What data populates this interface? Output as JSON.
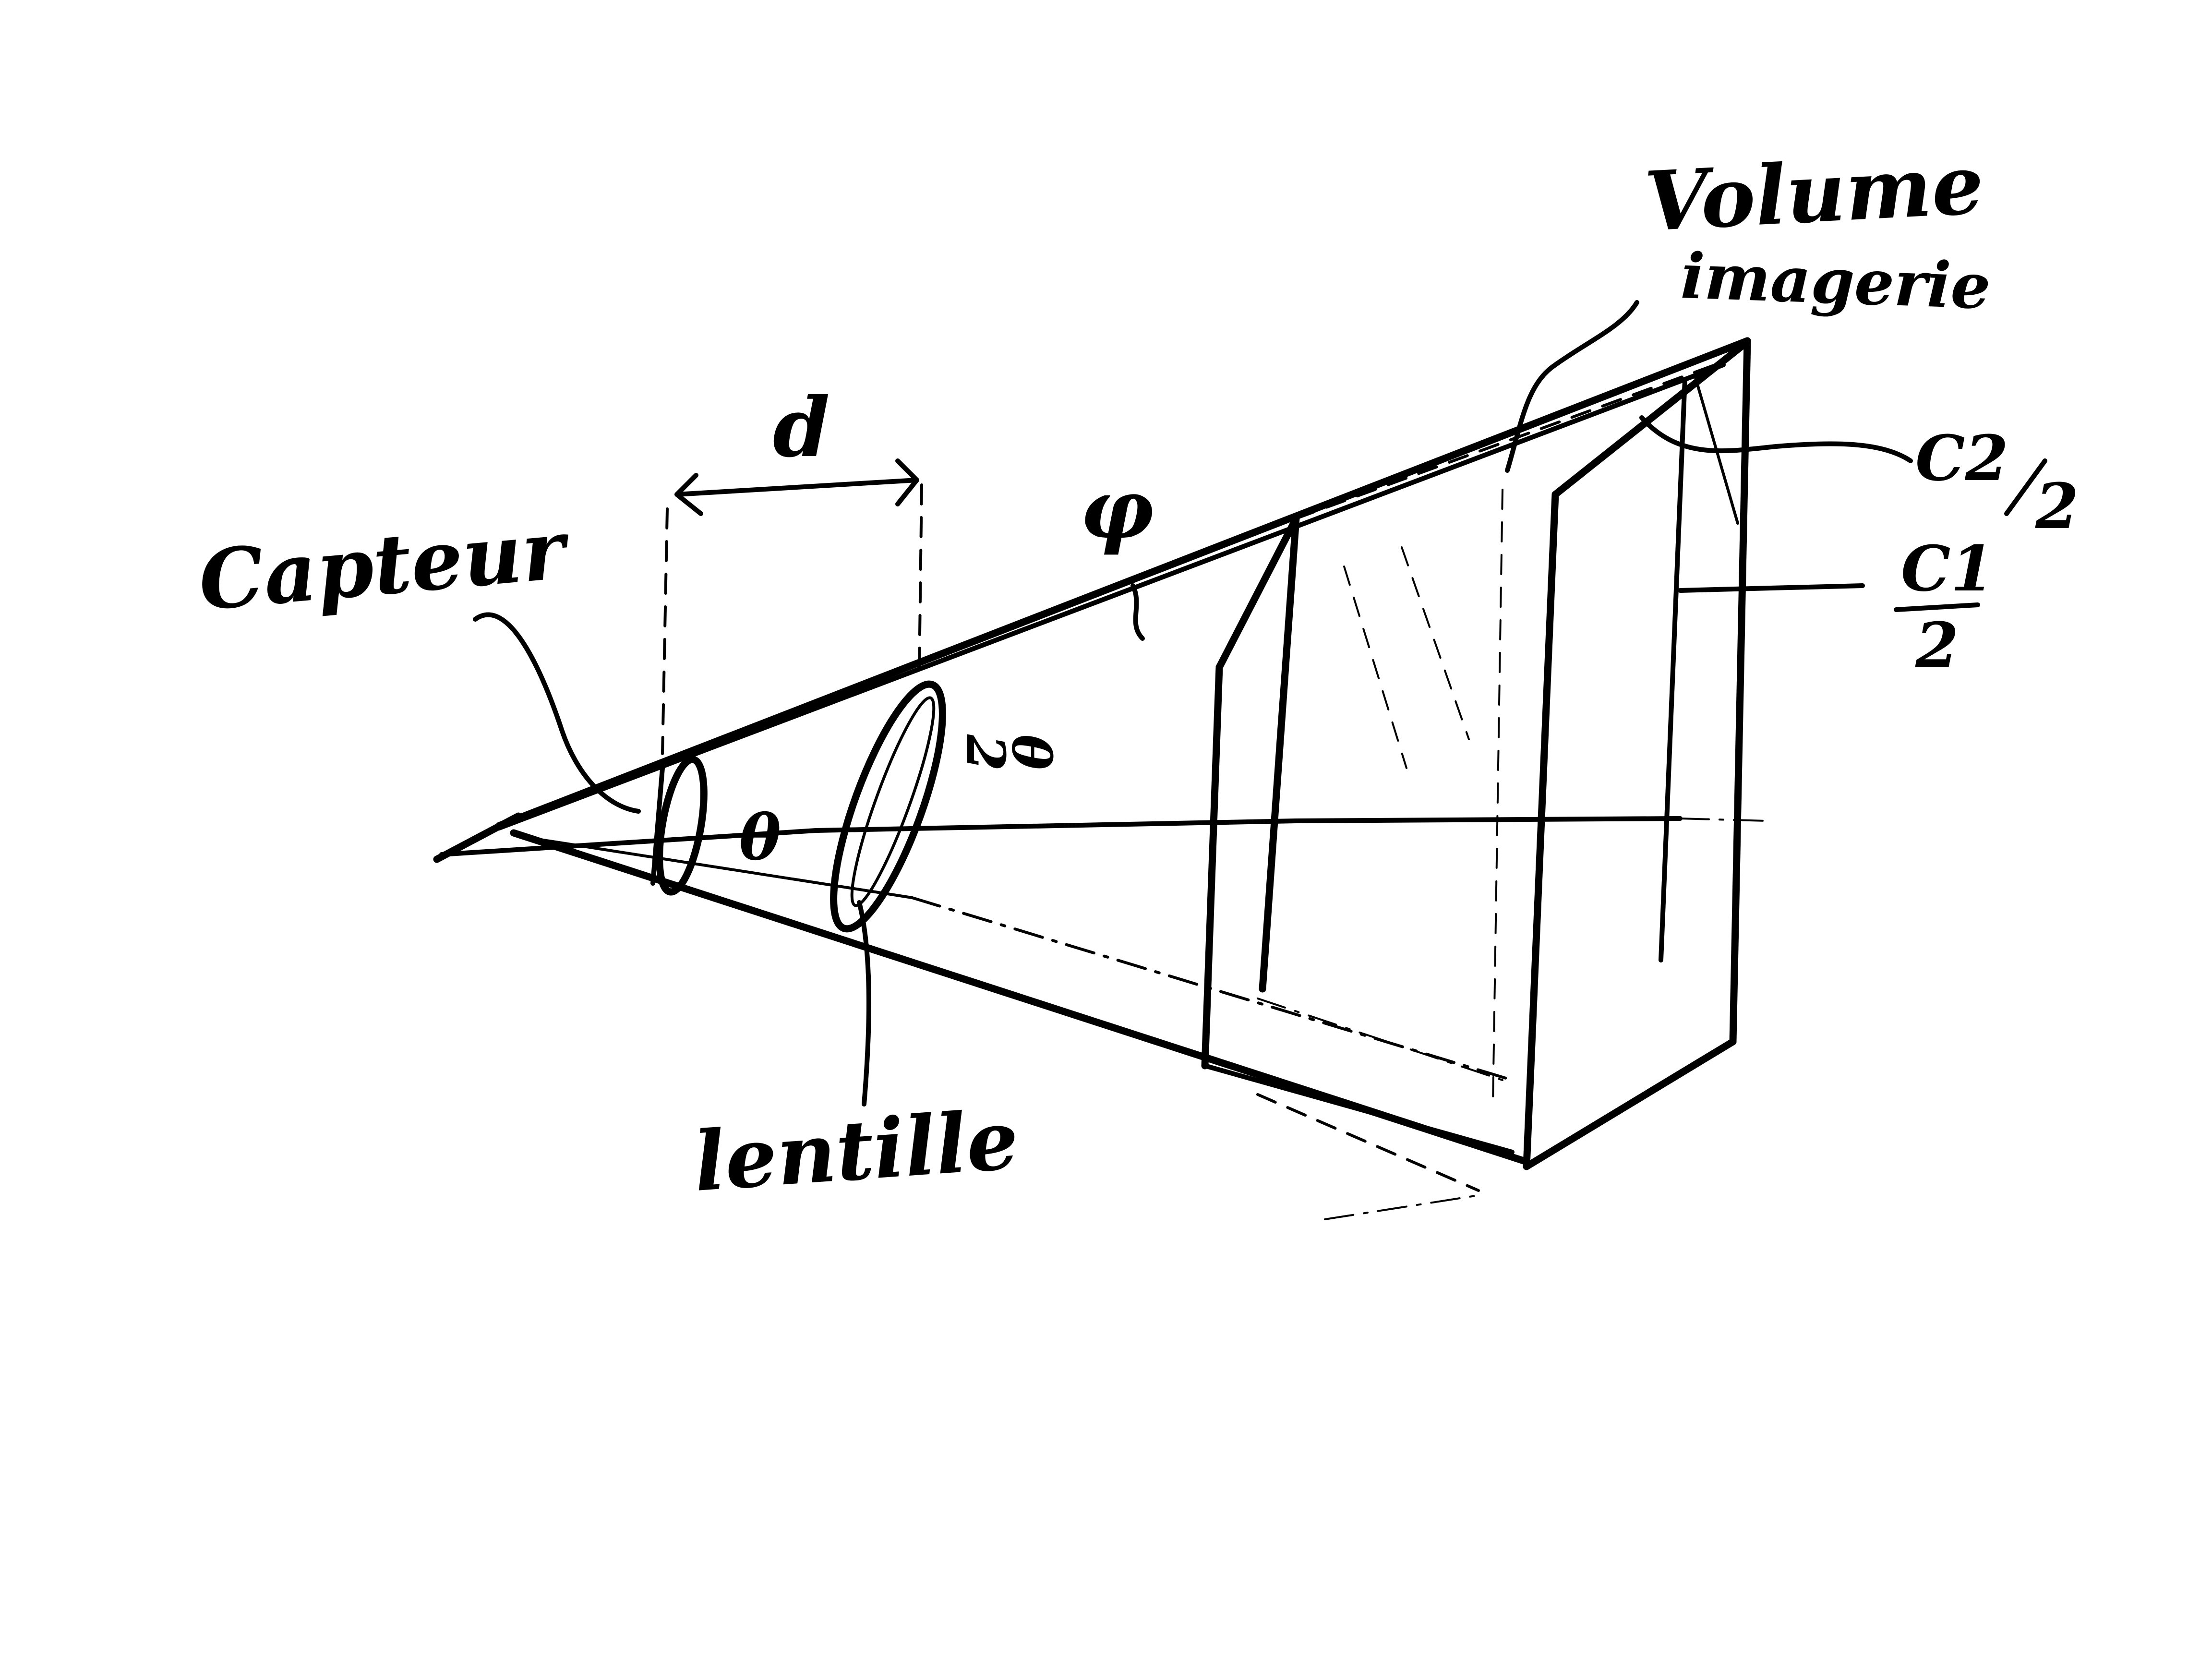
{
  "labels": {
    "capteur": "Capteur",
    "lentille": "lentille",
    "volume_line1": "Volume",
    "volume_line2": "imagerie",
    "d": "d",
    "phi": "φ",
    "theta": "θ",
    "theta_half_num": "θ",
    "theta_half_den": "2",
    "c2_half_num": "C2",
    "c2_half_den": "2",
    "c1_half_num": "C1",
    "c1_half_den": "2"
  },
  "colors": {
    "ink": "#000000",
    "background": "#ffffff"
  }
}
